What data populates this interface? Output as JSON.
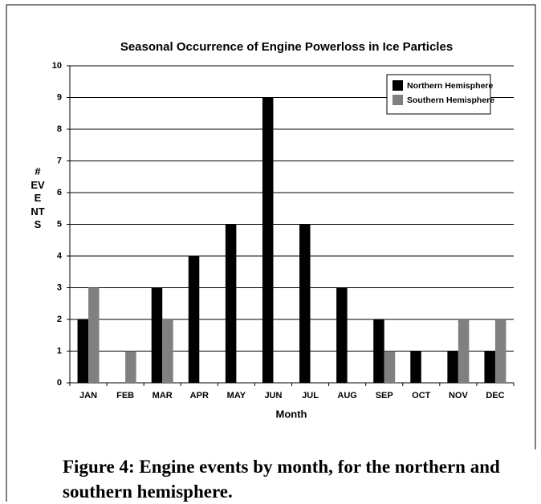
{
  "chart_data": {
    "type": "bar",
    "title": "Seasonal Occurrence of Engine Powerloss in Ice Particles",
    "x_label": "Month",
    "y_label": "# EVENTS",
    "categories": [
      "JAN",
      "FEB",
      "MAR",
      "APR",
      "MAY",
      "JUN",
      "JUL",
      "AUG",
      "SEP",
      "OCT",
      "NOV",
      "DEC"
    ],
    "series": [
      {
        "name": "Northern Hemisphere",
        "color": "#000000",
        "values": [
          2,
          0,
          3,
          4,
          5,
          9,
          5,
          3,
          2,
          1,
          1,
          1
        ]
      },
      {
        "name": "Southern Hemisphere",
        "color": "#808080",
        "values": [
          3,
          1,
          2,
          0,
          0,
          0,
          0,
          0,
          1,
          0,
          2,
          2
        ]
      }
    ],
    "ylim": [
      0,
      10
    ],
    "yticks": [
      0,
      1,
      2,
      3,
      4,
      5,
      6,
      7,
      8,
      9,
      10
    ],
    "grid": true,
    "legend": "upper right"
  },
  "caption": "Figure 4: Engine events by month, for the northern and southern hemisphere."
}
